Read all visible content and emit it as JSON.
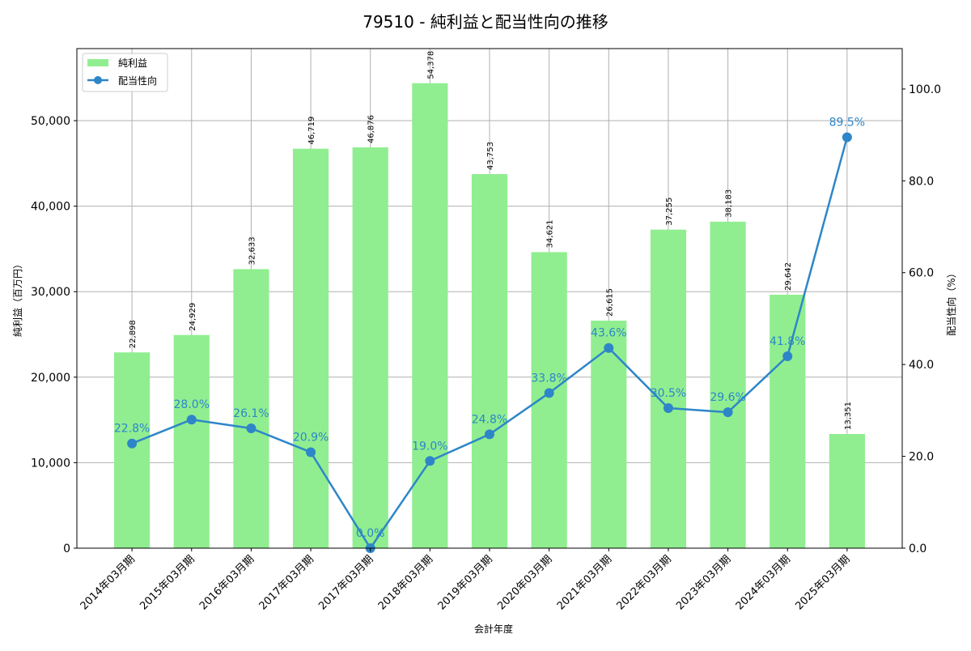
{
  "chart_data": {
    "type": "bar+line",
    "title": "79510 - 純利益と配当性向の推移",
    "xlabel": "会計年度",
    "ylabel": "純利益（百万円）",
    "y2label": "配当性向（%）",
    "categories": [
      "2014年03月期",
      "2015年03月期",
      "2016年03月期",
      "2017年03月期",
      "2017年03月期",
      "2018年03月期",
      "2019年03月期",
      "2020年03月期",
      "2021年03月期",
      "2022年03月期",
      "2023年03月期",
      "2024年03月期",
      "2025年03月期"
    ],
    "series": [
      {
        "name": "純利益",
        "type": "bar",
        "axis": "left",
        "color": "#90ee90",
        "values": [
          22898,
          24929,
          32633,
          46719,
          46876,
          54378,
          43753,
          34621,
          26615,
          37255,
          38183,
          29642,
          13351
        ],
        "labels": [
          "22,898",
          "24,929",
          "32,633",
          "46,719",
          "46,876",
          "54,378",
          "43,753",
          "34,621",
          "26,615",
          "37,255",
          "38,183",
          "29,642",
          "13,351"
        ]
      },
      {
        "name": "配当性向",
        "type": "line",
        "axis": "right",
        "color": "#2e86c8",
        "values": [
          22.8,
          28.0,
          26.1,
          20.9,
          0.0,
          19.0,
          24.8,
          33.8,
          43.6,
          30.5,
          29.6,
          41.8,
          89.5
        ],
        "labels": [
          "22.8%",
          "28.0%",
          "26.1%",
          "20.9%",
          "0.0%",
          "19.0%",
          "24.8%",
          "33.8%",
          "43.6%",
          "30.5%",
          "29.6%",
          "41.8%",
          "89.5%"
        ]
      }
    ],
    "ylim": [
      0,
      58430
    ],
    "y2lim": [
      0,
      108.8
    ],
    "yticks": [
      0,
      10000,
      20000,
      30000,
      40000,
      50000
    ],
    "ytick_labels": [
      "0",
      "10,000",
      "20,000",
      "30,000",
      "40,000",
      "50,000"
    ],
    "y2ticks": [
      0,
      20,
      40,
      60,
      80,
      100
    ],
    "y2tick_labels": [
      "0.0",
      "20.0",
      "40.0",
      "60.0",
      "80.0",
      "100.0"
    ],
    "grid": true,
    "legend": "top-left"
  }
}
